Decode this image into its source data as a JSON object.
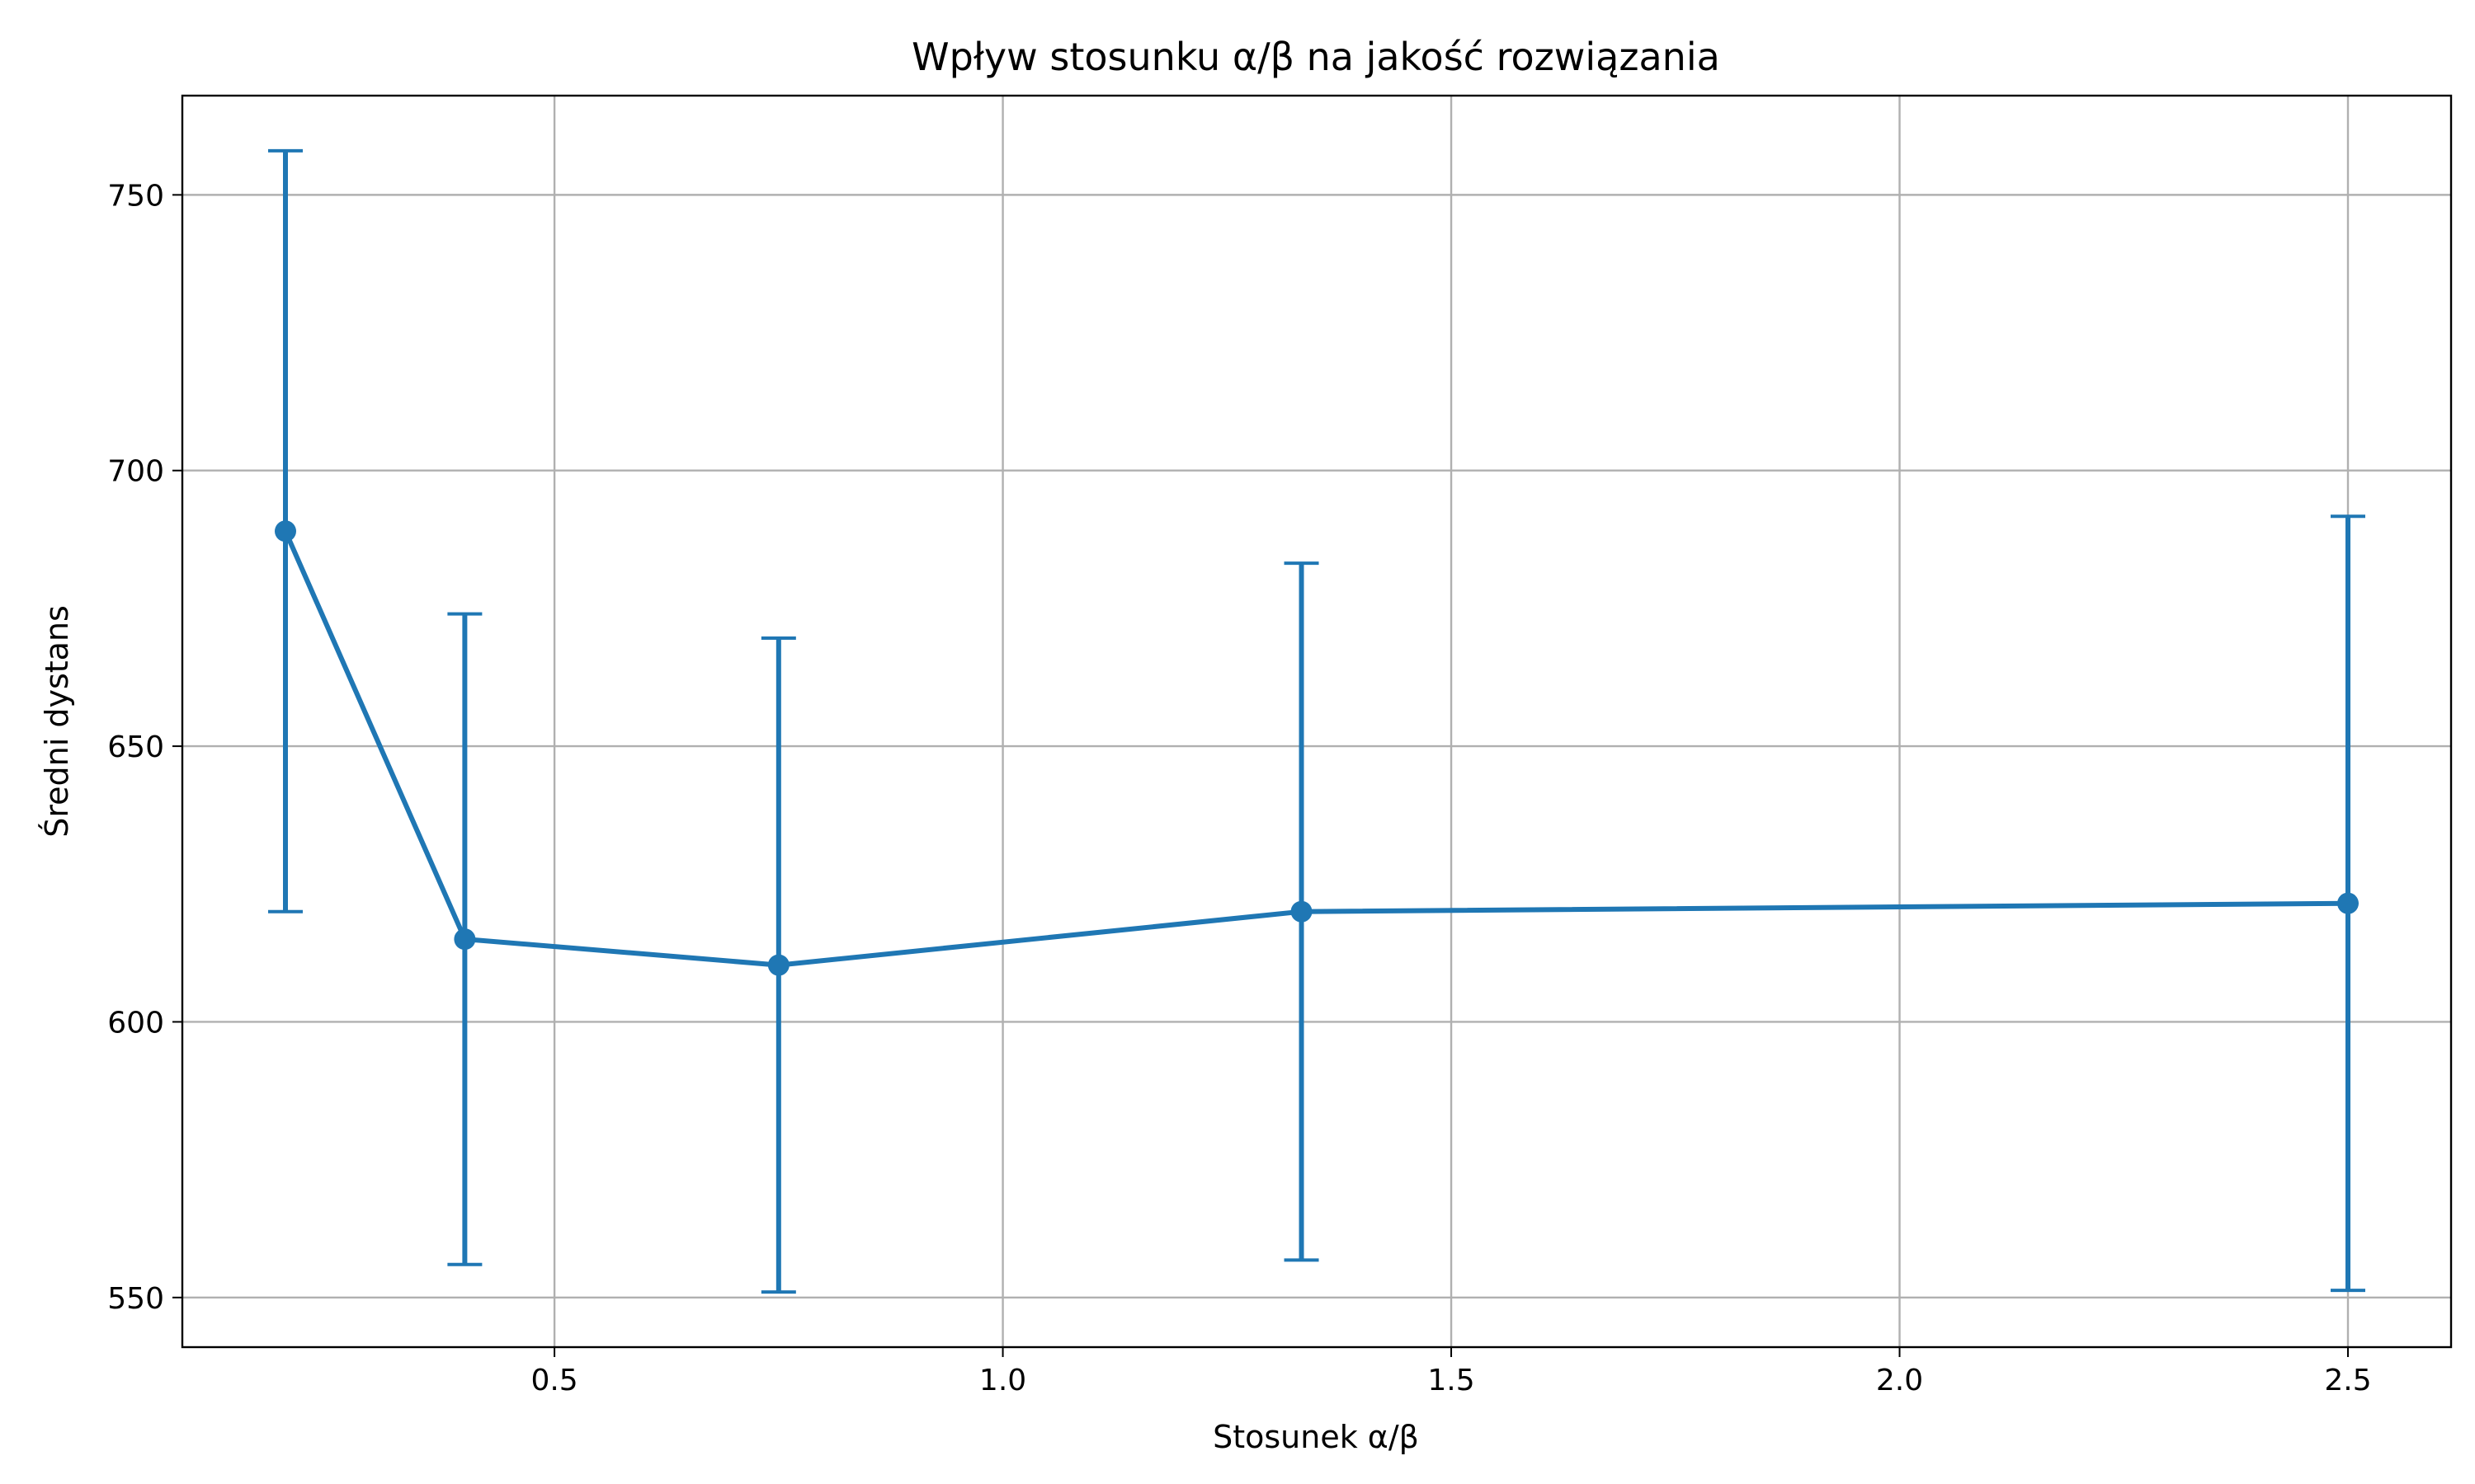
{
  "chart_data": {
    "type": "line",
    "title": "Wpływ stosunku α/β na jakość rozwiązania",
    "xlabel": "Stosunek α/β",
    "ylabel": "Średni dystans",
    "xlim": [
      0.085,
      2.615
    ],
    "ylim": [
      541,
      768
    ],
    "x_ticks": [
      0.5,
      1.0,
      1.5,
      2.0,
      2.5
    ],
    "x_tick_labels": [
      "0.5",
      "1.0",
      "1.5",
      "2.0",
      "2.5"
    ],
    "y_ticks": [
      550,
      600,
      650,
      700,
      750
    ],
    "y_tick_labels": [
      "550",
      "600",
      "650",
      "700",
      "750"
    ],
    "grid": true,
    "series": [
      {
        "color": "#1f77b4",
        "marker": "circle",
        "points": [
          {
            "x": 0.2,
            "y": 689,
            "yerr": 69
          },
          {
            "x": 0.4,
            "y": 615,
            "yerr": 59
          },
          {
            "x": 0.75,
            "y": 610.3,
            "yerr": 59.3
          },
          {
            "x": 1.333,
            "y": 620,
            "yerr": 63.2
          },
          {
            "x": 2.5,
            "y": 621.5,
            "yerr": 70.2
          }
        ]
      }
    ]
  }
}
